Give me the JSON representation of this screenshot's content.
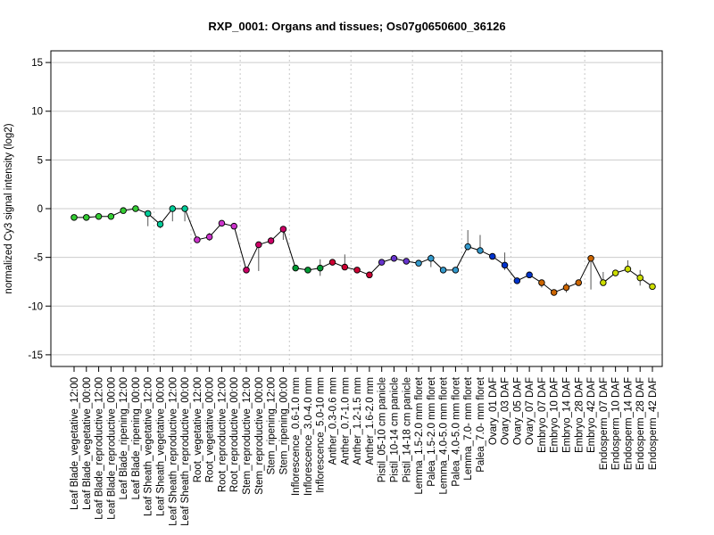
{
  "chart_data": {
    "type": "line",
    "title": "RXP_0001: Organs and tissues; Os07g0650600_36126",
    "xlabel": "",
    "ylabel": "normalized Cy3 signal intensity (log2)",
    "ylim": [
      -16.2,
      16.2
    ],
    "yticks": [
      -15,
      -10,
      -5,
      0,
      5,
      10,
      15
    ],
    "ytick_labels": [
      "-15",
      "-10",
      "-5",
      "0",
      "5",
      "10",
      "15"
    ],
    "grid": true,
    "legend": "none",
    "line_color": "#000000",
    "group_separators_after": [
      6,
      9,
      13,
      17,
      22,
      27,
      31,
      35,
      41
    ],
    "categories": [
      "Leaf Blade_vegetative_12:00",
      "Leaf Blade_vegetative_00:00",
      "Leaf Blade_reproductive_12:00",
      "Leaf Blade_reproductive_00:00",
      "Leaf Blade_ripening_12:00",
      "Leaf Blade_ripening_00:00",
      "Leaf Sheath_vegetative_12:00",
      "Leaf Sheath_vegetative_00:00",
      "Leaf Sheath_reproductive_12:00",
      "Leaf Sheath_reproductive_00:00",
      "Root_vegetative_12:00",
      "Root_vegetative_00:00",
      "Root_reproductive_12:00",
      "Root_reproductive_00:00",
      "Stem_reproductive_12:00",
      "Stem_reproductive_00:00",
      "Stem_ripening_12:00",
      "Stem_ripening_00:00",
      "Inflorescence_0.6-1.0 mm",
      "Inflorescence_3.0-4.0 mm",
      "Inflorescence_5.0-10 mm",
      "Anther_0.3-0.6 mm",
      "Anther_0.7-1.0 mm",
      "Anther_1.2-1.5 mm",
      "Anther_1.6-2.0 mm",
      "Pistil_05-10 cm panicle",
      "Pistil_10-14 cm panicle",
      "Pistil_14-18 cm panicle",
      "Lemma_1.5-2.0 mm floret",
      "Palea_1.5-2.0 mm floret",
      "Lemma_4.0-5.0 mm floret",
      "Palea_4.0-5.0 mm floret",
      "Lemma_7.0- mm floret",
      "Palea_7.0- mm floret",
      "Ovary_01 DAF",
      "Ovary_03 DAF",
      "Ovary_05 DAF",
      "Ovary_07 DAF",
      "Embryo_07 DAF",
      "Embryo_10 DAF",
      "Embryo_14 DAF",
      "Embryo_28 DAF",
      "Embryo_42 DAF",
      "Endosperm_07 DAF",
      "Endosperm_10 DAF",
      "Endosperm_14 DAF",
      "Endosperm_28 DAF",
      "Endosperm_42 DAF"
    ],
    "values": [
      -0.9,
      -0.9,
      -0.8,
      -0.8,
      -0.2,
      0.0,
      -0.5,
      -1.6,
      0.0,
      0.0,
      -3.2,
      -2.9,
      -1.5,
      -1.8,
      -6.3,
      -3.7,
      -3.3,
      -2.1,
      -6.1,
      -6.3,
      -6.1,
      -5.5,
      -6.0,
      -6.3,
      -6.8,
      -5.5,
      -5.1,
      -5.4,
      -5.6,
      -5.1,
      -6.3,
      -6.3,
      -3.9,
      -4.3,
      -4.9,
      -5.8,
      -7.4,
      -6.8,
      -7.6,
      -8.6,
      -8.1,
      -7.6,
      -5.1,
      -7.6,
      -6.6,
      -6.2,
      -7.1,
      -8.0
    ],
    "error_low": [
      -1.1,
      -1.1,
      -1.0,
      -1.0,
      -0.4,
      -0.2,
      -1.8,
      -2.0,
      -1.3,
      -1.3,
      -3.4,
      -3.3,
      -1.8,
      -2.0,
      -6.5,
      -6.4,
      -3.6,
      -3.2,
      -6.3,
      -6.5,
      -6.9,
      -5.7,
      -6.2,
      -6.6,
      -7.0,
      -5.7,
      -5.3,
      -5.6,
      -5.9,
      -6.0,
      -6.5,
      -6.5,
      -4.3,
      -4.5,
      -5.2,
      -6.3,
      -7.6,
      -7.0,
      -8.1,
      -8.8,
      -8.6,
      -7.9,
      -8.3,
      -7.9,
      -6.9,
      -6.6,
      -7.9,
      -8.2
    ],
    "error_high": [
      -0.7,
      -0.7,
      -0.6,
      -0.6,
      0.0,
      0.2,
      -0.2,
      -1.2,
      0.3,
      0.3,
      -3.0,
      -2.5,
      -1.2,
      -1.6,
      -6.1,
      -3.4,
      -3.0,
      -1.9,
      -5.9,
      -6.1,
      -5.2,
      -5.3,
      -4.7,
      -6.0,
      -6.6,
      -5.3,
      -4.9,
      -5.2,
      -5.3,
      -4.7,
      -6.1,
      -6.1,
      -2.2,
      -2.7,
      -4.6,
      -4.5,
      -7.2,
      -6.6,
      -7.3,
      -8.4,
      -7.6,
      -7.3,
      -5.0,
      -6.5,
      -6.3,
      -5.3,
      -6.3,
      -7.8
    ],
    "point_colors": [
      "#33cc33",
      "#33cc33",
      "#33cc33",
      "#33cc33",
      "#33cc33",
      "#33cc33",
      "#00cc99",
      "#00cc99",
      "#00cc99",
      "#00cc99",
      "#cc33cc",
      "#cc33cc",
      "#cc33cc",
      "#cc33cc",
      "#cc0066",
      "#cc0066",
      "#cc0066",
      "#cc0066",
      "#009933",
      "#009933",
      "#009933",
      "#cc0033",
      "#cc0033",
      "#cc0033",
      "#cc0033",
      "#6633cc",
      "#6633cc",
      "#6633cc",
      "#3399cc",
      "#3399cc",
      "#3399cc",
      "#3399cc",
      "#3399cc",
      "#3399cc",
      "#0033cc",
      "#0033cc",
      "#0033cc",
      "#0033cc",
      "#cc6600",
      "#cc6600",
      "#cc6600",
      "#cc6600",
      "#cc6600",
      "#ccdd00",
      "#ccdd00",
      "#ccdd00",
      "#ccdd00",
      "#ccdd00"
    ]
  }
}
